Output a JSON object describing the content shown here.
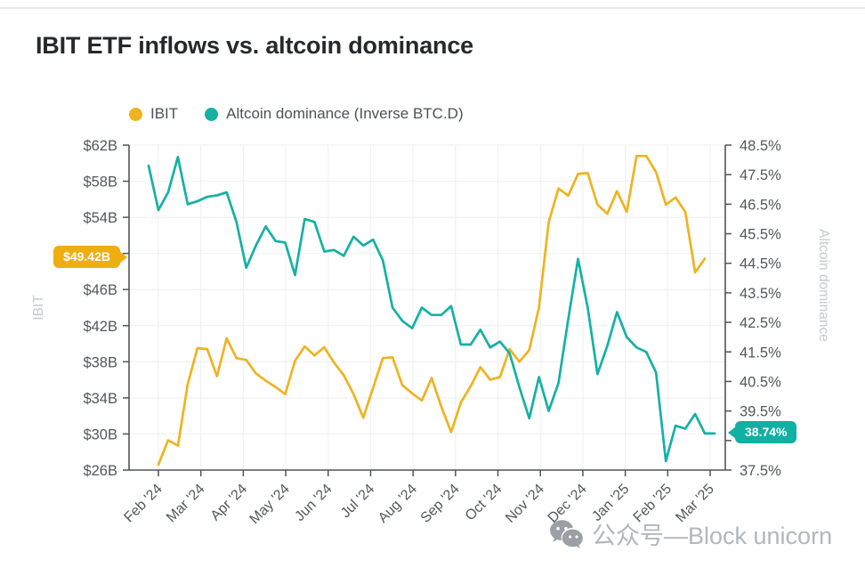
{
  "title": "IBIT ETF inflows vs. altcoin dominance",
  "legend": {
    "items": [
      {
        "label": "IBIT",
        "color": "#eeb320"
      },
      {
        "label": "Altcoin dominance (Inverse BTC.D)",
        "color": "#14b1a4"
      }
    ]
  },
  "badges": {
    "ibit_last": {
      "text": "$49.42B",
      "value": 49.42,
      "color": "#efae10"
    },
    "altcoin_last": {
      "text": "38.74%",
      "value": 38.74,
      "color": "#10b0a2"
    }
  },
  "watermark": {
    "icon": "wechat-icon",
    "text": "公众号—Block unicorn"
  },
  "chart_data": {
    "type": "line",
    "title": "IBIT ETF inflows vs. altcoin dominance",
    "frequency": "weekly",
    "x_range": "Feb 2024 - Mar 2025",
    "x_tick_labels": [
      "Feb '24",
      "Mar '24",
      "Apr '24",
      "May '24",
      "Jun '24",
      "Jul '24",
      "Aug '24",
      "Sep '24",
      "Oct '24",
      "Nov '24",
      "Dec '24",
      "Jan '25",
      "Feb '25",
      "Mar '25"
    ],
    "grid": true,
    "legend_position": "top-left",
    "left_axis": {
      "title": "IBIT",
      "min": 26,
      "max": 62,
      "tick_step": 4,
      "tick_values": [
        62,
        58,
        54,
        50,
        46,
        42,
        38,
        34,
        30,
        26
      ],
      "tick_labels": [
        "$62B",
        "$58B",
        "$54B",
        null,
        "$46B",
        "$42B",
        "$38B",
        "$34B",
        "$30B",
        "$26B"
      ],
      "note": "$50B label hidden behind $49.42B badge"
    },
    "right_axis": {
      "title": "Altcoin dominance",
      "min": 37.5,
      "max": 48.5,
      "tick_step": 1,
      "tick_values": [
        48.5,
        47.5,
        46.5,
        45.5,
        44.5,
        43.5,
        42.5,
        41.5,
        40.5,
        39.5,
        38.5,
        37.5
      ],
      "tick_labels": [
        "48.5%",
        "47.5%",
        "46.5%",
        "45.5%",
        "44.5%",
        "43.5%",
        "42.5%",
        "41.5%",
        "40.5%",
        "39.5%",
        null,
        "37.5%"
      ],
      "note": "38.5% label hidden behind 38.74% badge"
    },
    "series": [
      {
        "name": "IBIT",
        "axis": "left",
        "color": "#eeb320",
        "unit": "USD billions",
        "start_week": 1,
        "last_value_label": "$49.42B",
        "values": [
          26.6,
          29.3,
          28.7,
          35.5,
          39.5,
          39.4,
          36.4,
          40.6,
          38.4,
          38.2,
          36.7,
          35.9,
          35.2,
          34.4,
          38.1,
          39.7,
          38.7,
          39.6,
          37.9,
          36.5,
          34.4,
          31.8,
          35.1,
          38.4,
          38.5,
          35.4,
          34.5,
          33.7,
          36.2,
          33.0,
          30.2,
          33.5,
          35.3,
          37.4,
          36.0,
          36.3,
          39.4,
          38.0,
          39.3,
          44.0,
          53.5,
          57.2,
          56.4,
          58.8,
          58.9,
          55.4,
          54.4,
          56.9,
          54.6,
          60.8,
          60.8,
          59.0,
          55.4,
          56.2,
          54.6,
          47.9,
          49.42
        ]
      },
      {
        "name": "Altcoin dominance (Inverse BTC.D)",
        "axis": "right",
        "color": "#14b1a4",
        "unit": "percent",
        "start_week": 0,
        "last_value_label": "38.74%",
        "values": [
          47.8,
          46.3,
          46.9,
          48.1,
          46.5,
          46.6,
          46.75,
          46.8,
          46.9,
          45.9,
          44.35,
          45.1,
          45.75,
          45.25,
          45.2,
          44.1,
          46.0,
          45.9,
          44.9,
          44.95,
          44.75,
          45.4,
          45.1,
          45.3,
          44.6,
          43.0,
          42.55,
          42.3,
          43.0,
          42.75,
          42.75,
          43.05,
          41.75,
          41.75,
          42.25,
          41.65,
          41.85,
          41.45,
          40.3,
          39.25,
          40.65,
          39.5,
          40.45,
          42.6,
          44.65,
          43.0,
          40.75,
          41.7,
          42.85,
          42.0,
          41.65,
          41.5,
          40.8,
          37.8,
          39.0,
          38.9,
          39.4,
          38.74,
          38.74
        ]
      }
    ]
  }
}
